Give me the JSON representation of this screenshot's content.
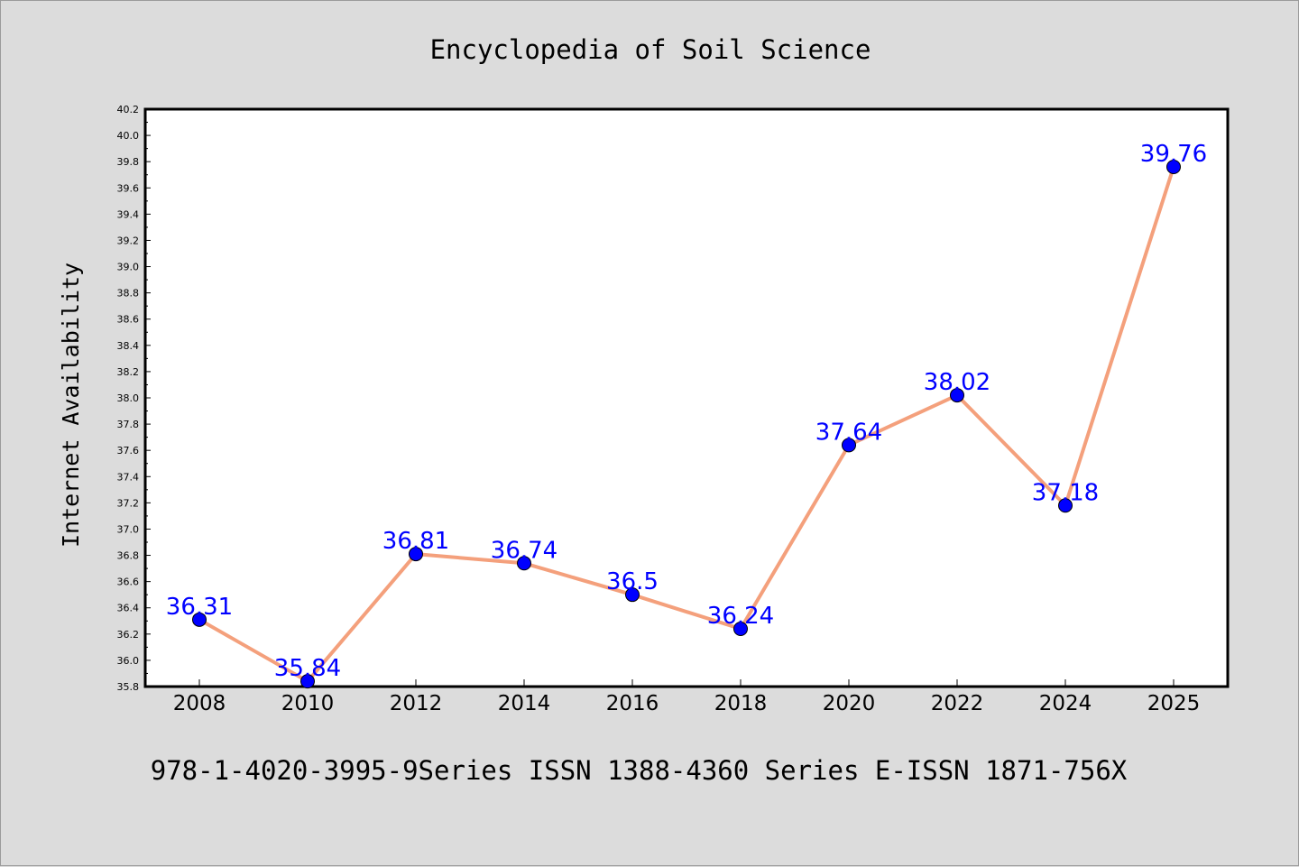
{
  "chart_data": {
    "type": "line",
    "title": "Encyclopedia of Soil Science",
    "ylabel": "Internet Availability",
    "xlabel": "",
    "footer": "978-1-4020-3995-9Series ISSN 1388-4360 Series E-ISSN 1871-756X",
    "x": [
      "2008",
      "2010",
      "2012",
      "2014",
      "2016",
      "2018",
      "2020",
      "2022",
      "2024",
      "2025"
    ],
    "series": [
      {
        "values": [
          36.31,
          35.84,
          36.81,
          36.74,
          36.5,
          36.24,
          37.64,
          38.02,
          37.18,
          39.76
        ]
      }
    ],
    "data_labels": [
      "36.31",
      "35.84",
      "36.81",
      "36.74",
      "36.5",
      "36.24",
      "37.64",
      "38.02",
      "37.18",
      "39.76"
    ],
    "ylim": [
      35.8,
      40.2
    ],
    "yticks": [
      "35.8",
      "36.0",
      "36.2",
      "36.4",
      "36.6",
      "36.8",
      "37.0",
      "37.2",
      "37.4",
      "37.6",
      "37.8",
      "38.0",
      "38.2",
      "38.4",
      "38.6",
      "38.8",
      "39.0",
      "39.2",
      "39.4",
      "39.6",
      "39.8",
      "40.0",
      "40.2"
    ],
    "grid": false,
    "legend": "none",
    "colors": {
      "line": "#f4a07c",
      "marker": "#0000ff",
      "label": "#0000ff",
      "background": "#dcdcdc",
      "plot_background": "#ffffff"
    }
  }
}
